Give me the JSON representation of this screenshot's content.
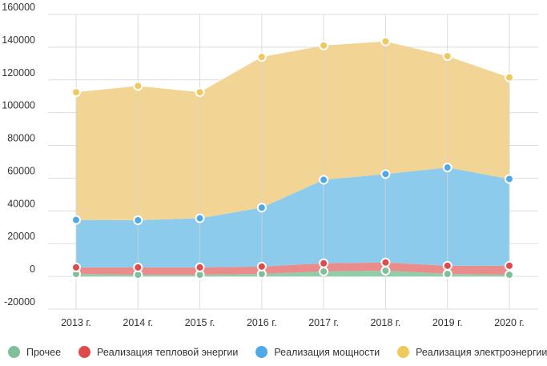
{
  "chart_data": {
    "type": "area",
    "stacked": true,
    "categories": [
      "2013 г.",
      "2014 г.",
      "2015 г.",
      "2016 г.",
      "2017 г.",
      "2018 г.",
      "2019 г.",
      "2020 г."
    ],
    "ylim": [
      -20000,
      160000
    ],
    "yticks": [
      -20000,
      0,
      20000,
      40000,
      60000,
      80000,
      100000,
      120000,
      140000,
      160000
    ],
    "ytick_labels": [
      "-20000",
      "0",
      "20000",
      "40000",
      "60000",
      "80000",
      "100000",
      "120000",
      "140000",
      "160000"
    ],
    "grid": true,
    "legend_position": "bottom",
    "series": [
      {
        "name": "Прочее",
        "color": "#8ecfaa",
        "dot": "#7fbf9a",
        "values": [
          1500,
          1000,
          1000,
          1500,
          3000,
          3500,
          1500,
          1000
        ]
      },
      {
        "name": "Реализация тепловой энергии",
        "color": "#eb8c8c",
        "dot": "#e04a4a",
        "values": [
          4000,
          4500,
          4500,
          4500,
          5000,
          5000,
          5000,
          5500
        ]
      },
      {
        "name": "Реализация мощности",
        "color": "#8ccbeb",
        "dot": "#4ea9e6",
        "values": [
          29000,
          28800,
          30000,
          36000,
          51000,
          54000,
          60000,
          53000
        ]
      },
      {
        "name": "Реализация электроэнергии",
        "color": "#f2d594",
        "dot": "#efc85e",
        "values": [
          78000,
          82000,
          77000,
          92000,
          82000,
          81000,
          68000,
          62000
        ]
      }
    ]
  }
}
